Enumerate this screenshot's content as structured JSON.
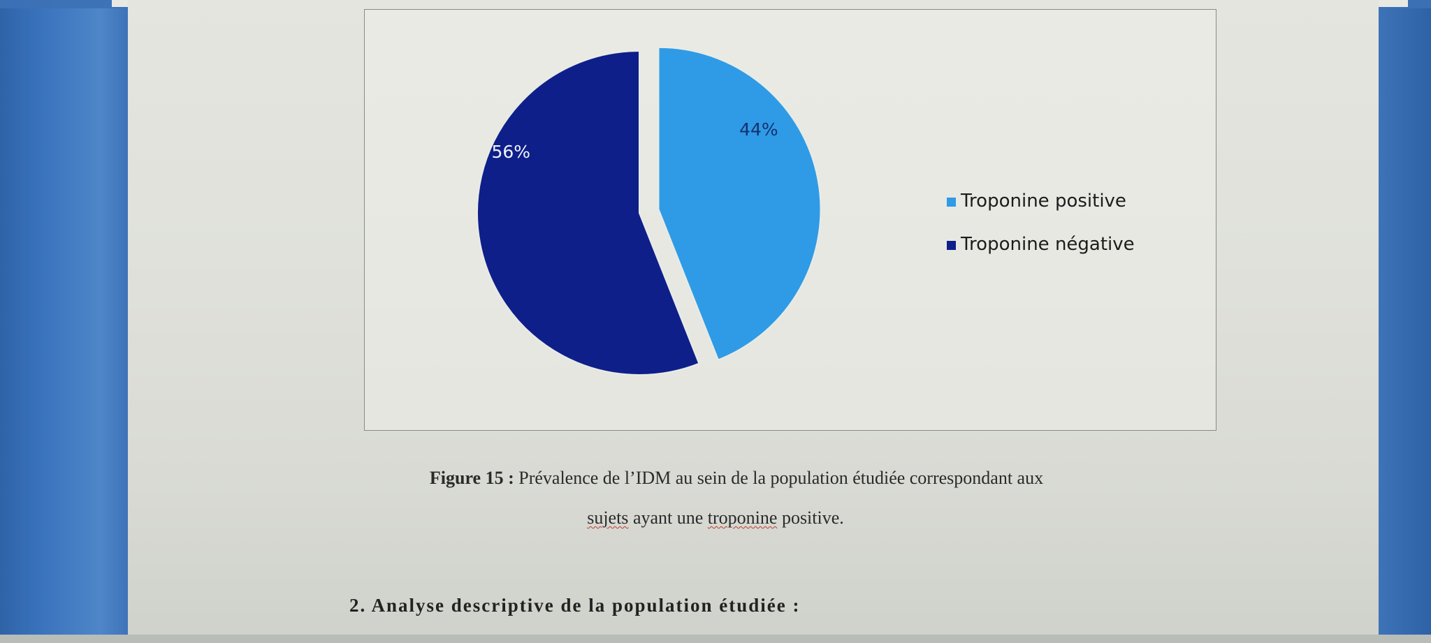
{
  "chart_data": {
    "type": "pie",
    "slices": [
      {
        "label": "Troponine positive",
        "value": 44,
        "display": "44%",
        "color": "#2f9be6",
        "exploded": true
      },
      {
        "label": "Troponine négative",
        "value": 56,
        "display": "56%",
        "color": "#0e1f8a",
        "exploded": false
      }
    ],
    "legend": {
      "placement": "right",
      "entries": [
        "Troponine positive",
        "Troponine négative"
      ]
    }
  },
  "caption": {
    "figure_label": "Figure 15 :",
    "line1": "Prévalence de l’IDM au sein de la population étudiée correspondant aux",
    "line2_part1": "sujets",
    "line2_part2": " ayant une ",
    "line2_part3": "troponine",
    "line2_part4": " positive."
  },
  "section_heading": "2.  Analyse descriptive de la population  étudiée :"
}
